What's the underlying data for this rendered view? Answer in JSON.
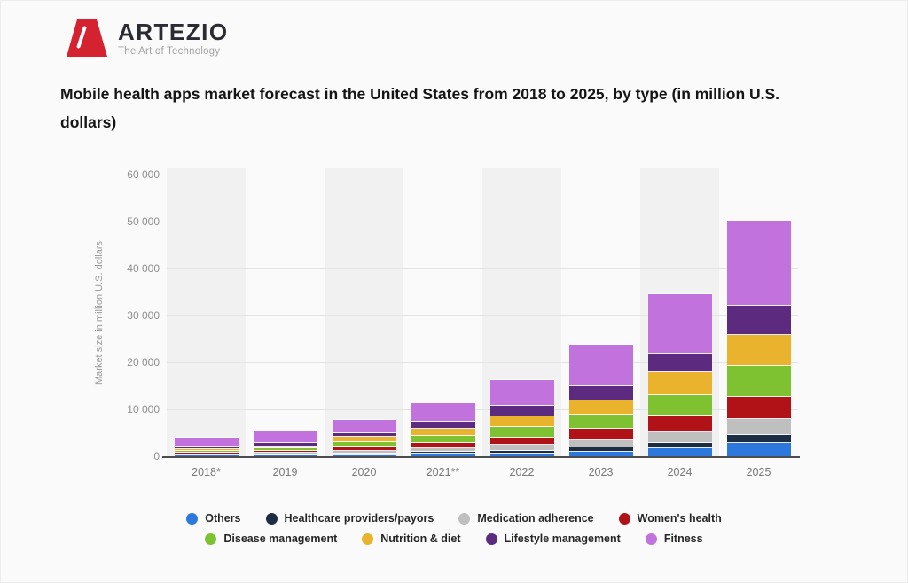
{
  "logo": {
    "name": "ARTEZIO",
    "tagline": "The Art of Technology"
  },
  "title": "Mobile health apps market forecast in the United States from 2018 to 2025, by type (in million U.S. dollars)",
  "chart_data": {
    "type": "bar",
    "stacked": true,
    "title": "Mobile health apps market forecast in the United States from 2018 to 2025, by type (in million U.S. dollars)",
    "categories": [
      "2018*",
      "2019",
      "2020",
      "2021**",
      "2022",
      "2023",
      "2024",
      "2025"
    ],
    "series": [
      {
        "name": "Others",
        "color": "#2d78dc",
        "values": [
          300,
          400,
          500,
          800,
          800,
          1100,
          1900,
          3100
        ]
      },
      {
        "name": "Healthcare providers/payors",
        "color": "#1c2e45",
        "values": [
          130,
          200,
          300,
          400,
          600,
          1000,
          1100,
          1550
        ]
      },
      {
        "name": "Medication adherence",
        "color": "#bfbfbf",
        "values": [
          200,
          300,
          600,
          800,
          1200,
          1450,
          2200,
          3450
        ]
      },
      {
        "name": "Women's health",
        "color": "#b11217",
        "values": [
          300,
          450,
          850,
          1100,
          1650,
          2500,
          3750,
          4700
        ]
      },
      {
        "name": "Disease management",
        "color": "#7fc231",
        "values": [
          350,
          500,
          1050,
          1400,
          2100,
          3000,
          4200,
          6600
        ]
      },
      {
        "name": "Nutrition & diet",
        "color": "#e9b32e",
        "values": [
          450,
          500,
          1100,
          1600,
          2350,
          2950,
          4900,
          6600
        ]
      },
      {
        "name": "Lifestyle management",
        "color": "#5c2b80",
        "values": [
          500,
          600,
          800,
          1400,
          2200,
          3150,
          4100,
          6250
        ]
      },
      {
        "name": "Fitness",
        "color": "#c272dd",
        "values": [
          1900,
          2700,
          2700,
          4000,
          5600,
          8800,
          12500,
          18150
        ]
      }
    ],
    "xlabel": "",
    "ylabel": "Market size in million U.S. dollars",
    "ylim": [
      0,
      60000
    ],
    "ytick_step": 10000,
    "ytick_labels": [
      "0",
      "10 000",
      "20 000",
      "30 000",
      "40 000",
      "50 000",
      "60 000"
    ],
    "grid": true,
    "legend_position": "bottom",
    "legend_rows": [
      [
        0,
        1,
        2,
        3
      ],
      [
        4,
        5,
        6,
        7
      ]
    ]
  }
}
